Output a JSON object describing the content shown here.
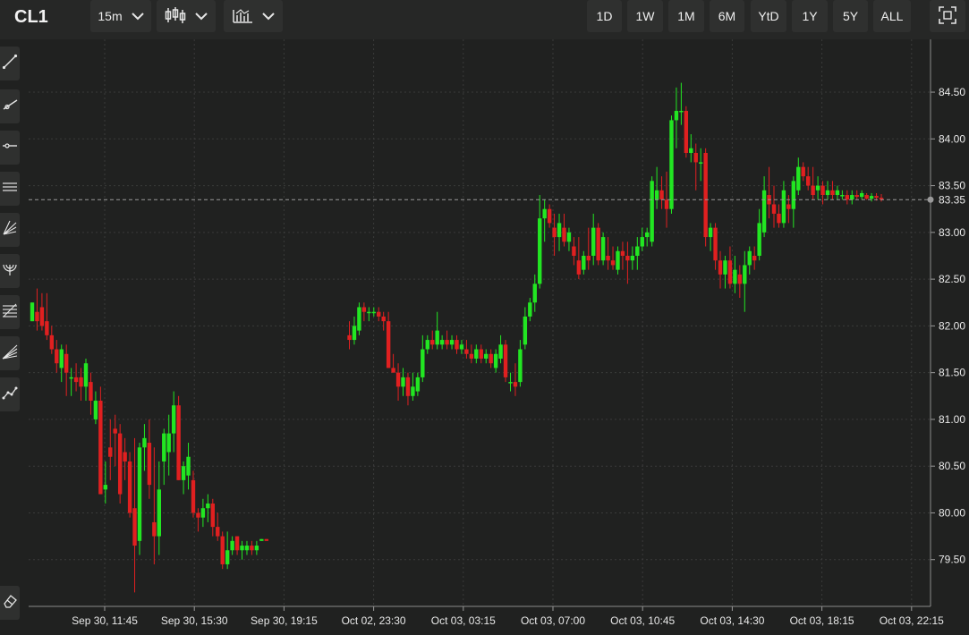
{
  "toolbar": {
    "symbol": "CL1",
    "interval": "15m",
    "chart_type_icon": "candlestick-icon",
    "indicators_icon": "indicators-icon",
    "ranges": [
      "1D",
      "1W",
      "1M",
      "6M",
      "YtD",
      "1Y",
      "5Y",
      "ALL"
    ],
    "fullscreen_icon": "fullscreen-icon"
  },
  "left_tools": [
    "trend-line-icon",
    "ray-icon",
    "horizontal-ray-icon",
    "parallel-channel-icon",
    "pitchfork-icon",
    "fib-arc-icon",
    "fib-retracement-icon",
    "fib-fan-icon",
    "polyline-icon"
  ],
  "bottom_tool": "eraser-icon",
  "colors": {
    "up": "#22e622",
    "down": "#e02020",
    "bg": "#202120",
    "grid": "#3a3b3a",
    "text": "#e8e8e8"
  },
  "chart_data": {
    "type": "candlestick",
    "y_ticks": [
      "84.50",
      "84.00",
      "83.50",
      "83.00",
      "82.50",
      "82.00",
      "81.50",
      "81.00",
      "80.50",
      "80.00",
      "79.50"
    ],
    "ylim": [
      79.0,
      84.95
    ],
    "x_ticks": [
      "Sep 30, 11:45",
      "Sep 30, 15:30",
      "Sep 30, 19:15",
      "Oct 02, 23:30",
      "Oct 03, 03:15",
      "Oct 03, 07:00",
      "Oct 03, 10:45",
      "Oct 03, 14:30",
      "Oct 03, 18:15",
      "Oct 03, 22:15"
    ],
    "last_price": "83.35",
    "grid": true,
    "candles": [
      [
        82.05,
        82.25,
        82.05,
        82.25
      ],
      [
        82.15,
        82.4,
        81.95,
        82.05
      ],
      [
        82.2,
        82.35,
        81.95,
        82.0
      ],
      [
        82.05,
        82.35,
        81.85,
        81.9
      ],
      [
        81.9,
        82.0,
        81.7,
        81.75
      ],
      [
        81.75,
        81.85,
        81.5,
        81.6
      ],
      [
        81.55,
        81.8,
        81.4,
        81.75
      ],
      [
        81.7,
        81.8,
        81.25,
        81.5
      ],
      [
        81.45,
        81.55,
        81.25,
        81.45
      ],
      [
        81.45,
        81.6,
        81.3,
        81.4
      ],
      [
        81.45,
        81.55,
        81.2,
        81.35
      ],
      [
        81.35,
        81.65,
        81.2,
        81.6
      ],
      [
        81.4,
        81.5,
        81.05,
        81.2
      ],
      [
        81.0,
        81.3,
        80.95,
        81.2
      ],
      [
        81.2,
        81.35,
        80.2,
        80.2
      ],
      [
        80.25,
        80.55,
        80.1,
        80.3
      ],
      [
        80.7,
        81.0,
        80.35,
        80.6
      ],
      [
        80.9,
        81.05,
        80.5,
        80.85
      ],
      [
        80.85,
        80.95,
        80.1,
        80.2
      ],
      [
        80.65,
        80.8,
        80.35,
        80.55
      ],
      [
        80.55,
        80.65,
        79.95,
        80.0
      ],
      [
        80.05,
        80.8,
        79.15,
        79.65
      ],
      [
        79.7,
        80.75,
        79.55,
        80.7
      ],
      [
        80.7,
        80.95,
        80.45,
        80.8
      ],
      [
        80.75,
        81.0,
        80.15,
        80.3
      ],
      [
        79.9,
        80.7,
        79.45,
        79.75
      ],
      [
        79.75,
        80.55,
        79.55,
        80.25
      ],
      [
        80.55,
        80.9,
        80.3,
        80.85
      ],
      [
        80.65,
        81.05,
        80.4,
        80.85
      ],
      [
        80.85,
        81.3,
        80.65,
        81.15
      ],
      [
        81.15,
        81.25,
        80.35,
        80.35
      ],
      [
        80.35,
        80.55,
        80.2,
        80.5
      ],
      [
        80.4,
        80.75,
        80.25,
        80.6
      ],
      [
        80.35,
        80.45,
        79.95,
        80.0
      ],
      [
        80.0,
        80.05,
        79.8,
        79.95
      ],
      [
        79.95,
        80.15,
        79.85,
        80.05
      ],
      [
        80.05,
        80.2,
        79.9,
        80.1
      ],
      [
        80.1,
        80.15,
        79.75,
        79.85
      ],
      [
        79.85,
        80.0,
        79.7,
        79.75
      ],
      [
        79.75,
        79.8,
        79.4,
        79.45
      ],
      [
        79.45,
        79.8,
        79.4,
        79.6
      ],
      [
        79.6,
        79.75,
        79.55,
        79.7
      ],
      [
        79.75,
        79.75,
        79.55,
        79.6
      ],
      [
        79.6,
        79.7,
        79.5,
        79.65
      ],
      [
        79.6,
        79.7,
        79.55,
        79.65
      ],
      [
        79.65,
        79.7,
        79.55,
        79.6
      ],
      [
        79.6,
        79.7,
        79.55,
        79.65
      ],
      [
        79.7,
        79.72,
        79.7,
        79.72
      ],
      [
        79.72,
        79.72,
        79.7,
        79.7
      ],
      [
        81.9,
        82.05,
        81.75,
        81.85
      ],
      [
        81.85,
        82.1,
        81.8,
        82.0
      ],
      [
        81.95,
        82.25,
        81.9,
        82.2
      ],
      [
        82.2,
        82.25,
        82.05,
        82.15
      ],
      [
        82.15,
        82.2,
        82.05,
        82.15
      ],
      [
        82.15,
        82.2,
        82.1,
        82.15
      ],
      [
        82.15,
        82.2,
        82.05,
        82.1
      ],
      [
        82.1,
        82.15,
        81.95,
        82.05
      ],
      [
        82.05,
        82.15,
        81.55,
        81.55
      ],
      [
        81.55,
        81.7,
        81.5,
        81.5
      ],
      [
        81.5,
        81.6,
        81.2,
        81.35
      ],
      [
        81.35,
        81.55,
        81.25,
        81.45
      ],
      [
        81.45,
        81.5,
        81.15,
        81.25
      ],
      [
        81.25,
        81.5,
        81.2,
        81.35
      ],
      [
        81.3,
        81.5,
        81.25,
        81.45
      ],
      [
        81.45,
        81.9,
        81.4,
        81.75
      ],
      [
        81.75,
        81.9,
        81.7,
        81.85
      ],
      [
        81.85,
        81.95,
        81.75,
        81.8
      ],
      [
        81.8,
        82.15,
        81.75,
        81.95
      ],
      [
        81.8,
        81.9,
        81.75,
        81.85
      ],
      [
        81.85,
        81.95,
        81.75,
        81.8
      ],
      [
        81.8,
        81.9,
        81.75,
        81.85
      ],
      [
        81.85,
        81.9,
        81.7,
        81.75
      ],
      [
        81.75,
        81.85,
        81.7,
        81.8
      ],
      [
        81.75,
        81.85,
        81.65,
        81.7
      ],
      [
        81.7,
        81.8,
        81.6,
        81.65
      ],
      [
        81.65,
        81.8,
        81.6,
        81.75
      ],
      [
        81.75,
        81.8,
        81.6,
        81.65
      ],
      [
        81.65,
        81.75,
        81.6,
        81.7
      ],
      [
        81.7,
        81.75,
        81.55,
        81.6
      ],
      [
        81.55,
        81.75,
        81.5,
        81.7
      ],
      [
        81.65,
        81.9,
        81.6,
        81.8
      ],
      [
        81.8,
        81.85,
        81.4,
        81.45
      ],
      [
        81.4,
        81.5,
        81.3,
        81.4
      ],
      [
        81.4,
        81.6,
        81.25,
        81.35
      ],
      [
        81.4,
        81.85,
        81.35,
        81.75
      ],
      [
        81.8,
        82.2,
        81.75,
        82.1
      ],
      [
        82.1,
        82.3,
        82.05,
        82.25
      ],
      [
        82.25,
        82.55,
        82.15,
        82.45
      ],
      [
        82.45,
        83.4,
        82.4,
        83.15
      ],
      [
        83.15,
        83.35,
        82.9,
        83.25
      ],
      [
        83.25,
        83.3,
        83.05,
        83.1
      ],
      [
        83.05,
        83.2,
        82.75,
        82.95
      ],
      [
        82.95,
        83.2,
        82.8,
        83.1
      ],
      [
        83.05,
        83.2,
        82.85,
        82.9
      ],
      [
        82.9,
        83.05,
        82.8,
        83.0
      ],
      [
        82.85,
        82.95,
        82.65,
        82.75
      ],
      [
        82.7,
        82.95,
        82.5,
        82.55
      ],
      [
        82.6,
        82.8,
        82.55,
        82.75
      ],
      [
        82.75,
        83.05,
        82.6,
        82.7
      ],
      [
        82.75,
        83.2,
        82.65,
        83.05
      ],
      [
        83.05,
        83.1,
        82.65,
        82.7
      ],
      [
        82.7,
        83.0,
        82.65,
        82.95
      ],
      [
        82.75,
        82.95,
        82.6,
        82.7
      ],
      [
        82.7,
        82.85,
        82.6,
        82.65
      ],
      [
        82.6,
        82.85,
        82.55,
        82.8
      ],
      [
        82.8,
        82.9,
        82.6,
        82.75
      ],
      [
        82.75,
        82.9,
        82.45,
        82.7
      ],
      [
        82.7,
        82.85,
        82.6,
        82.75
      ],
      [
        82.75,
        82.95,
        82.6,
        82.85
      ],
      [
        82.85,
        83.05,
        82.8,
        82.95
      ],
      [
        82.95,
        83.05,
        82.85,
        83.0
      ],
      [
        82.9,
        83.6,
        82.85,
        83.55
      ],
      [
        83.35,
        83.7,
        83.25,
        83.45
      ],
      [
        83.45,
        83.6,
        83.25,
        83.35
      ],
      [
        83.35,
        83.65,
        83.05,
        83.25
      ],
      [
        83.25,
        84.25,
        83.2,
        84.2
      ],
      [
        84.2,
        84.55,
        83.9,
        84.3
      ],
      [
        84.3,
        84.6,
        84.15,
        84.3
      ],
      [
        84.3,
        84.35,
        83.8,
        83.85
      ],
      [
        83.85,
        84.05,
        83.75,
        83.9
      ],
      [
        83.85,
        83.95,
        83.45,
        83.75
      ],
      [
        83.75,
        83.9,
        83.55,
        83.75
      ],
      [
        83.85,
        83.9,
        82.85,
        82.95
      ],
      [
        82.95,
        83.1,
        82.8,
        83.05
      ],
      [
        83.05,
        83.1,
        82.6,
        82.7
      ],
      [
        82.7,
        82.8,
        82.4,
        82.55
      ],
      [
        82.55,
        82.75,
        82.4,
        82.7
      ],
      [
        82.7,
        82.85,
        82.4,
        82.45
      ],
      [
        82.45,
        82.75,
        82.35,
        82.6
      ],
      [
        82.55,
        82.65,
        82.3,
        82.45
      ],
      [
        82.45,
        82.8,
        82.15,
        82.65
      ],
      [
        82.65,
        82.85,
        82.55,
        82.8
      ],
      [
        82.75,
        82.85,
        82.6,
        82.7
      ],
      [
        82.75,
        83.25,
        82.7,
        83.1
      ],
      [
        83.0,
        83.6,
        82.95,
        83.45
      ],
      [
        83.4,
        83.7,
        83.15,
        83.3
      ],
      [
        83.3,
        83.5,
        83.05,
        83.2
      ],
      [
        83.2,
        83.3,
        83.05,
        83.1
      ],
      [
        83.1,
        83.55,
        83.05,
        83.45
      ],
      [
        83.3,
        83.4,
        83.1,
        83.25
      ],
      [
        83.25,
        83.6,
        83.05,
        83.55
      ],
      [
        83.45,
        83.8,
        83.4,
        83.7
      ],
      [
        83.7,
        83.75,
        83.55,
        83.6
      ],
      [
        83.6,
        83.7,
        83.45,
        83.5
      ],
      [
        83.5,
        83.7,
        83.35,
        83.4
      ],
      [
        83.45,
        83.6,
        83.35,
        83.5
      ],
      [
        83.5,
        83.55,
        83.3,
        83.4
      ],
      [
        83.4,
        83.55,
        83.35,
        83.45
      ],
      [
        83.45,
        83.55,
        83.35,
        83.4
      ],
      [
        83.4,
        83.5,
        83.35,
        83.45
      ],
      [
        83.4,
        83.45,
        83.35,
        83.4
      ],
      [
        83.4,
        83.45,
        83.3,
        83.35
      ],
      [
        83.35,
        83.45,
        83.3,
        83.4
      ],
      [
        83.4,
        83.45,
        83.35,
        83.38
      ],
      [
        83.38,
        83.45,
        83.35,
        83.42
      ],
      [
        83.4,
        83.42,
        83.35,
        83.36
      ],
      [
        83.36,
        83.42,
        83.33,
        83.39
      ],
      [
        83.39,
        83.42,
        83.34,
        83.37
      ],
      [
        83.37,
        83.41,
        83.33,
        83.35
      ]
    ]
  }
}
